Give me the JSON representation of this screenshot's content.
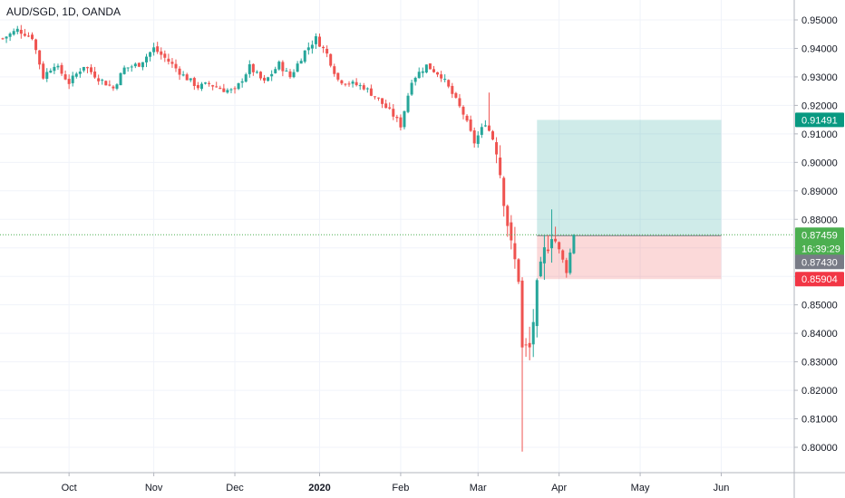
{
  "header": {
    "symbol_title": "AUD/SGD, 1D, OANDA"
  },
  "colors": {
    "up": "#26a69a",
    "down": "#ef5350",
    "grid": "#f0f3fa",
    "axis_text": "#131722",
    "profit_zone": "#26a69a",
    "loss_zone": "#ef5350",
    "current_price_line": "#4caf50",
    "label_target": "#089981",
    "label_current": "#4caf50",
    "label_entry": "#787b86",
    "label_stop": "#f23645"
  },
  "chart_data": {
    "type": "candlestick",
    "title": "AUD/SGD, 1D, OANDA",
    "xlabel": "",
    "ylabel": "",
    "ylim": [
      0.795,
      0.955
    ],
    "y_ticks": [
      "0.95000",
      "0.94000",
      "0.93000",
      "0.92000",
      "0.91000",
      "0.90000",
      "0.89000",
      "0.88000",
      "0.87000",
      "0.86000",
      "0.85000",
      "0.84000",
      "0.83000",
      "0.82000",
      "0.81000",
      "0.80000"
    ],
    "x_ticks": [
      {
        "label": "Oct",
        "index": 18
      },
      {
        "label": "Nov",
        "index": 41
      },
      {
        "label": "Dec",
        "index": 63
      },
      {
        "label": "2020",
        "index": 86
      },
      {
        "label": "Feb",
        "index": 108
      },
      {
        "label": "Mar",
        "index": 129
      },
      {
        "label": "Apr",
        "index": 151
      },
      {
        "label": "May",
        "index": 173
      },
      {
        "label": "Jun",
        "index": 195
      }
    ],
    "grid": true,
    "close_path": [
      [
        0,
        0.9435
      ],
      [
        4,
        0.9465
      ],
      [
        8,
        0.944
      ],
      [
        11,
        0.93
      ],
      [
        14,
        0.9345
      ],
      [
        18,
        0.928
      ],
      [
        22,
        0.934
      ],
      [
        26,
        0.9295
      ],
      [
        30,
        0.926
      ],
      [
        33,
        0.933
      ],
      [
        37,
        0.9345
      ],
      [
        41,
        0.94
      ],
      [
        45,
        0.9355
      ],
      [
        49,
        0.9305
      ],
      [
        53,
        0.9265
      ],
      [
        56,
        0.9275
      ],
      [
        60,
        0.9255
      ],
      [
        63,
        0.925
      ],
      [
        67,
        0.9335
      ],
      [
        71,
        0.928
      ],
      [
        75,
        0.9345
      ],
      [
        78,
        0.93
      ],
      [
        82,
        0.939
      ],
      [
        85,
        0.9435
      ],
      [
        88,
        0.938
      ],
      [
        91,
        0.929
      ],
      [
        95,
        0.9275
      ],
      [
        98,
        0.9265
      ],
      [
        102,
        0.922
      ],
      [
        106,
        0.9165
      ],
      [
        108,
        0.913
      ],
      [
        111,
        0.929
      ],
      [
        115,
        0.934
      ],
      [
        119,
        0.9305
      ],
      [
        122,
        0.924
      ],
      [
        125,
        0.917
      ],
      [
        128,
        0.907
      ],
      [
        131,
        0.914
      ],
      [
        134,
        0.9055
      ],
      [
        136,
        0.888
      ],
      [
        138,
        0.87
      ],
      [
        140,
        0.86
      ],
      [
        141,
        0.834
      ],
      [
        143,
        0.8345
      ],
      [
        145,
        0.855
      ],
      [
        147,
        0.868
      ],
      [
        149,
        0.876
      ],
      [
        151,
        0.869
      ],
      [
        153,
        0.862
      ],
      [
        155,
        0.8745
      ]
    ],
    "wick_extremes": [
      {
        "index": 141,
        "low": 0.7985
      },
      {
        "index": 132,
        "high": 0.9245
      },
      {
        "index": 149,
        "high": 0.8835
      }
    ],
    "position_tool": {
      "type": "long",
      "entry": 0.8743,
      "target": 0.91491,
      "stop": 0.85904,
      "start_index": 145,
      "end_index": 195
    },
    "price_labels": {
      "target": "0.91491",
      "current": "0.87459",
      "countdown": "16:39:29",
      "entry": "0.87430",
      "stop": "0.85904"
    },
    "current_price": 0.87459
  }
}
